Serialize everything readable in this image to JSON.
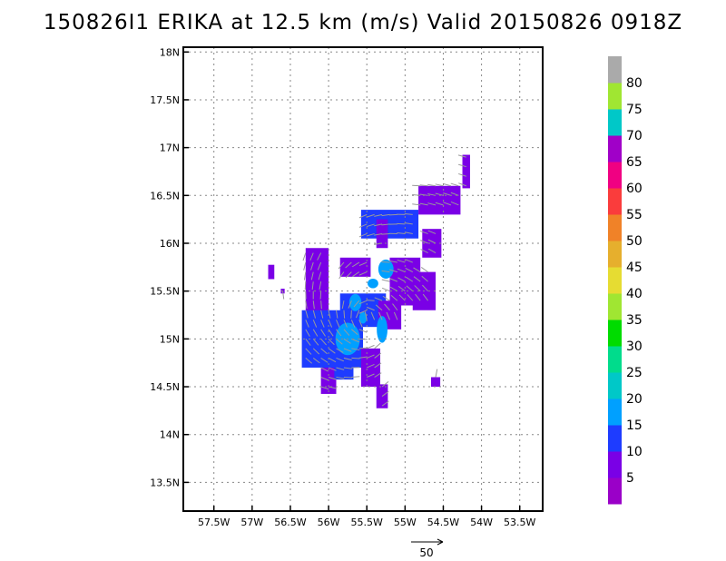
{
  "chart_data": {
    "type": "heatmap",
    "title": "150826I1 ERIKA at 12.5 km (m/s) Valid 20150826 0918Z",
    "x_ticks": [
      "57.5W",
      "57W",
      "56.5W",
      "56W",
      "55.5W",
      "55W",
      "54.5W",
      "54W",
      "53.5W"
    ],
    "x_tick_values": [
      -57.5,
      -57.0,
      -56.5,
      -56.0,
      -55.5,
      -55.0,
      -54.5,
      -54.0,
      -53.5
    ],
    "y_ticks": [
      "13.5N",
      "14N",
      "14.5N",
      "15N",
      "15.5N",
      "16N",
      "16.5N",
      "17N",
      "17.5N",
      "18N"
    ],
    "y_tick_values": [
      13.5,
      14.0,
      14.5,
      15.0,
      15.5,
      16.0,
      16.5,
      17.0,
      17.5,
      18.0
    ],
    "xlim": [
      -57.9,
      -53.2
    ],
    "ylim": [
      13.2,
      18.05
    ],
    "grid": true,
    "colorbar": {
      "labels": [
        "5",
        "10",
        "15",
        "20",
        "25",
        "30",
        "35",
        "40",
        "45",
        "50",
        "55",
        "60",
        "65",
        "70",
        "75",
        "80"
      ],
      "colors": [
        "#9a00c8",
        "#7a00e6",
        "#1e3cff",
        "#00a0ff",
        "#00c8c8",
        "#00dc8c",
        "#00dc00",
        "#a0e632",
        "#e6dc32",
        "#e6af2d",
        "#f08228",
        "#fa3c3c",
        "#f00082",
        "#a000c8",
        "#00c8c8",
        "#a0e632",
        "#aaaaaa"
      ]
    },
    "reference_vector": {
      "label": "50",
      "value": 50
    },
    "cells": [
      {
        "lon": -54.2,
        "lat": 16.75,
        "w": 0.1,
        "h": 0.35,
        "v": 5
      },
      {
        "lon": -54.55,
        "lat": 16.45,
        "w": 0.55,
        "h": 0.3,
        "v": 5
      },
      {
        "lon": -55.2,
        "lat": 16.2,
        "w": 0.75,
        "h": 0.3,
        "v": 10
      },
      {
        "lon": -55.3,
        "lat": 16.1,
        "w": 0.15,
        "h": 0.3,
        "v": 5
      },
      {
        "lon": -54.65,
        "lat": 16.0,
        "w": 0.25,
        "h": 0.3,
        "v": 5
      },
      {
        "lon": -56.15,
        "lat": 15.6,
        "w": 0.3,
        "h": 0.7,
        "v": 5
      },
      {
        "lon": -56.0,
        "lat": 14.7,
        "w": 0.2,
        "h": 0.55,
        "v": 5
      },
      {
        "lon": -55.65,
        "lat": 15.75,
        "w": 0.4,
        "h": 0.2,
        "v": 5
      },
      {
        "lon": -55.95,
        "lat": 15.0,
        "w": 0.8,
        "h": 0.6,
        "v": 10
      },
      {
        "lon": -55.55,
        "lat": 15.3,
        "w": 0.6,
        "h": 0.35,
        "v": 10
      },
      {
        "lon": -55.2,
        "lat": 15.25,
        "w": 0.3,
        "h": 0.3,
        "v": 5
      },
      {
        "lon": -55.0,
        "lat": 15.6,
        "w": 0.4,
        "h": 0.5,
        "v": 5
      },
      {
        "lon": -54.75,
        "lat": 15.5,
        "w": 0.3,
        "h": 0.4,
        "v": 5
      },
      {
        "lon": -55.45,
        "lat": 14.7,
        "w": 0.25,
        "h": 0.4,
        "v": 5
      },
      {
        "lon": -55.3,
        "lat": 14.4,
        "w": 0.15,
        "h": 0.25,
        "v": 5
      },
      {
        "lon": -55.8,
        "lat": 14.65,
        "w": 0.25,
        "h": 0.15,
        "v": 10
      },
      {
        "lon": -56.75,
        "lat": 15.7,
        "w": 0.08,
        "h": 0.15,
        "v": 5
      },
      {
        "lon": -56.6,
        "lat": 15.5,
        "w": 0.05,
        "h": 0.05,
        "v": 5
      },
      {
        "lon": -54.6,
        "lat": 14.55,
        "w": 0.12,
        "h": 0.1,
        "v": 5
      }
    ],
    "blobs": [
      {
        "lon": -55.75,
        "lat": 15.0,
        "rx": 0.16,
        "ry": 0.17,
        "v": 15
      },
      {
        "lon": -55.3,
        "lat": 15.1,
        "rx": 0.07,
        "ry": 0.14,
        "v": 15
      },
      {
        "lon": -55.25,
        "lat": 15.73,
        "rx": 0.1,
        "ry": 0.1,
        "v": 15
      },
      {
        "lon": -55.42,
        "lat": 15.58,
        "rx": 0.07,
        "ry": 0.05,
        "v": 15
      },
      {
        "lon": -55.65,
        "lat": 15.38,
        "rx": 0.08,
        "ry": 0.09,
        "v": 15
      },
      {
        "lon": -55.55,
        "lat": 15.22,
        "rx": 0.05,
        "ry": 0.06,
        "v": 15
      }
    ]
  }
}
